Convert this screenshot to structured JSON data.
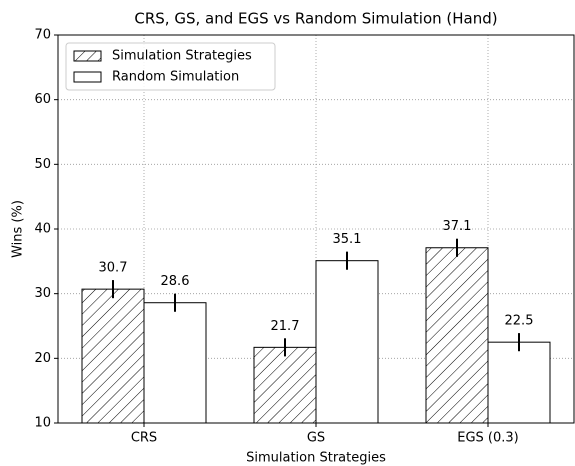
{
  "chart_data": {
    "type": "bar",
    "title": "CRS, GS, and EGS vs Random Simulation (Hand)",
    "x_label": "Simulation Strategies",
    "y_label": "Wins (%)",
    "categories": [
      "CRS",
      "GS",
      "EGS (0.3)"
    ],
    "series": [
      {
        "name": "Simulation Strategies",
        "color": "#ffffff",
        "hatch": true,
        "values": [
          30.7,
          21.7,
          37.1
        ],
        "errors": [
          1.4,
          1.4,
          1.4
        ]
      },
      {
        "name": "Random Simulation",
        "color": "#ffffff",
        "hatch": false,
        "values": [
          28.6,
          35.1,
          22.5
        ],
        "errors": [
          1.4,
          1.4,
          1.4
        ]
      }
    ],
    "ylim": [
      10,
      70
    ],
    "yticks": [
      10,
      20,
      30,
      40,
      50,
      60,
      70
    ],
    "grid": true,
    "legend": "upper left"
  }
}
